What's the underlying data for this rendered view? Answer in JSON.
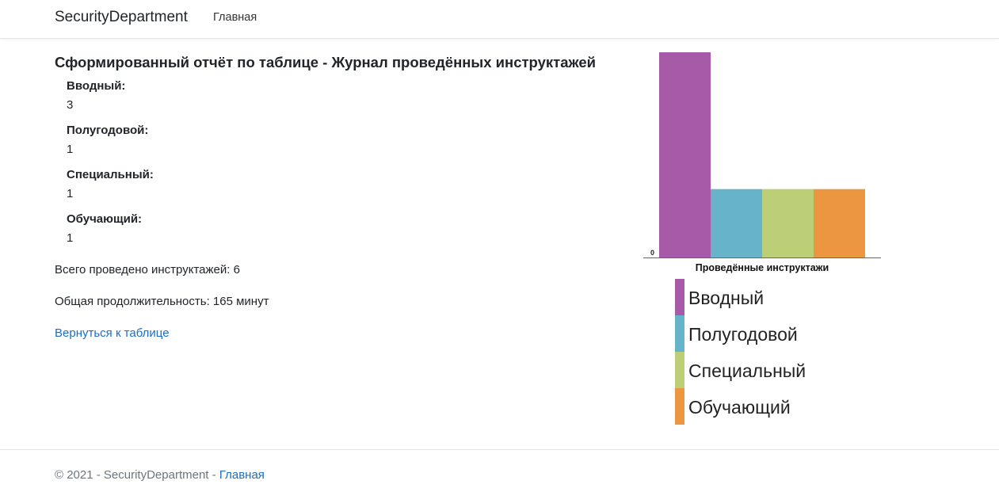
{
  "navbar": {
    "brand": "SecurityDepartment",
    "home_link": "Главная"
  },
  "report": {
    "title": "Сформированный отчёт по таблице - Журнал проведённых инструктажей",
    "items": [
      {
        "label": "Вводный:",
        "value": "3"
      },
      {
        "label": "Полугодовой:",
        "value": "1"
      },
      {
        "label": "Специальный:",
        "value": "1"
      },
      {
        "label": "Обучающий:",
        "value": "1"
      }
    ],
    "total": "Всего проведено инструктажей: 6",
    "duration": "Общая продолжительность: 165 минут",
    "back_link": "Вернуться к таблице"
  },
  "chart_data": {
    "type": "bar",
    "categories": [
      "Вводный",
      "Полугодовой",
      "Специальный",
      "Обучающий"
    ],
    "values": [
      3,
      1,
      1,
      1
    ],
    "colors": [
      "#a65aa8",
      "#67b3c9",
      "#bccf77",
      "#ed9642"
    ],
    "xlabel": "Проведённые инструктажи",
    "ylabel": "",
    "ytick_labels": [
      "0"
    ],
    "ylim": [
      0,
      3
    ],
    "legend_position": "bottom",
    "grid": false
  },
  "footer": {
    "text": "© 2021 - SecurityDepartment - ",
    "link": "Главная"
  }
}
